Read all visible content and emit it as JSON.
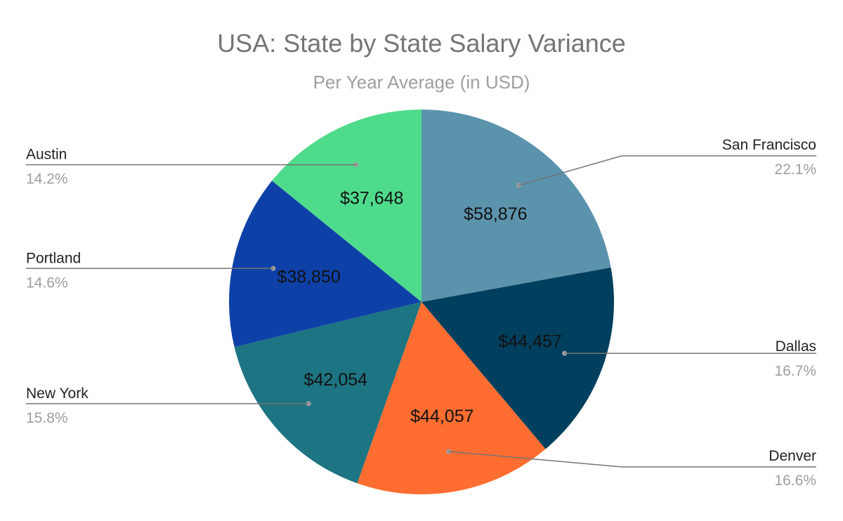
{
  "chart_data": {
    "type": "pie",
    "title": "USA: State by State Salary Variance",
    "subtitle": "Per Year Average (in USD)",
    "slices": [
      {
        "name": "San Francisco",
        "value": 58876,
        "value_label": "$58,876",
        "percent_label": "22.1%",
        "color": "#5b93ad"
      },
      {
        "name": "Dallas",
        "value": 44457,
        "value_label": "$44,457",
        "percent_label": "16.7%",
        "color": "#013f5e"
      },
      {
        "name": "Denver",
        "value": 44057,
        "value_label": "$44,057",
        "percent_label": "16.6%",
        "color": "#ff6d31"
      },
      {
        "name": "New York",
        "value": 42054,
        "value_label": "$42,054",
        "percent_label": "15.8%",
        "color": "#1d7482"
      },
      {
        "name": "Portland",
        "value": 38850,
        "value_label": "$38,850",
        "percent_label": "14.6%",
        "color": "#0e41a8"
      },
      {
        "name": "Austin",
        "value": 37648,
        "value_label": "$37,648",
        "percent_label": "14.2%",
        "color": "#4fdb8c"
      }
    ],
    "legend": "leader-lines"
  }
}
